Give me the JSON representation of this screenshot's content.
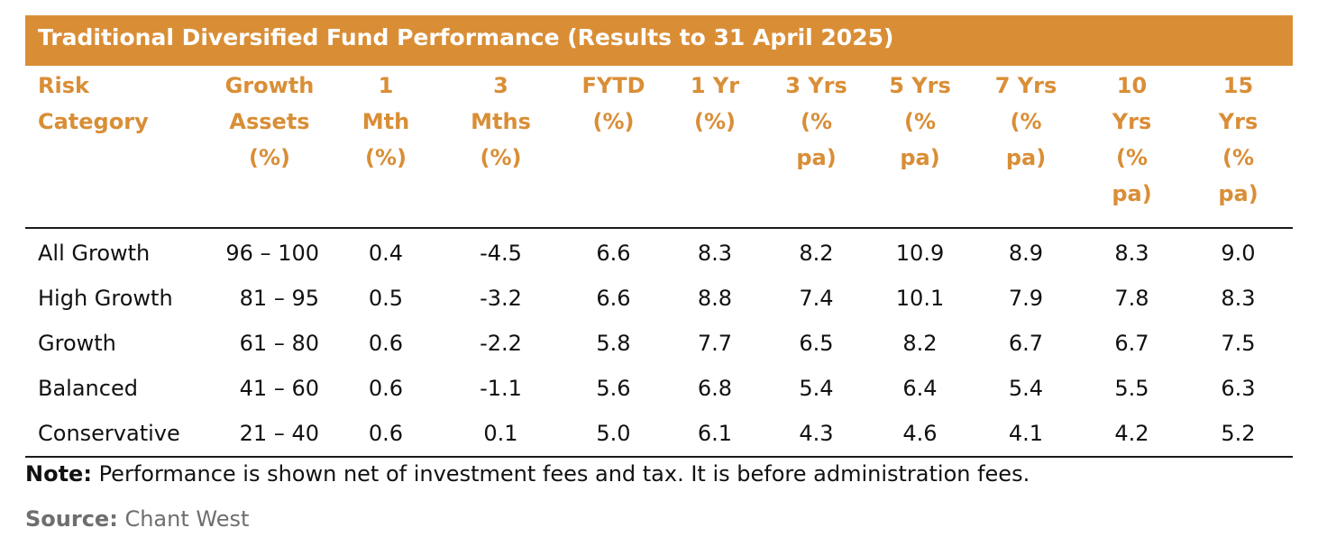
{
  "title": "Traditional Diversified Fund Performance (Results to 31 April 2025)",
  "accent_color": "#d98e36",
  "headers": [
    "Risk Category",
    "Growth Assets (%)",
    "1 Mth (%)",
    "3 Mths (%)",
    "FYTD (%)",
    "1 Yr (%)",
    "3 Yrs (% pa)",
    "5 Yrs (% pa)",
    "7 Yrs (% pa)",
    "10 Yrs (% pa)",
    "15 Yrs (% pa)"
  ],
  "rows": [
    [
      "All Growth",
      "96 – 100",
      "0.4",
      "-4.5",
      "6.6",
      "8.3",
      "8.2",
      "10.9",
      "8.9",
      "8.3",
      "9.0"
    ],
    [
      "High Growth",
      "81 – 95",
      "0.5",
      "-3.2",
      "6.6",
      "8.8",
      "7.4",
      "10.1",
      "7.9",
      "7.8",
      "8.3"
    ],
    [
      "Growth",
      "61 – 80",
      "0.6",
      "-2.2",
      "5.8",
      "7.7",
      "6.5",
      "8.2",
      "6.7",
      "6.7",
      "7.5"
    ],
    [
      "Balanced",
      "41 – 60",
      "0.6",
      "-1.1",
      "5.6",
      "6.8",
      "5.4",
      "6.4",
      "5.4",
      "5.5",
      "6.3"
    ],
    [
      "Conservative",
      "21 – 40",
      "0.6",
      "0.1",
      "5.0",
      "6.1",
      "4.3",
      "4.6",
      "4.1",
      "4.2",
      "5.2"
    ]
  ],
  "note": {
    "label": "Note:",
    "text": "Performance is shown net of investment fees and tax. It is before administration fees."
  },
  "source": {
    "label": "Source:",
    "text": "Chant West"
  }
}
